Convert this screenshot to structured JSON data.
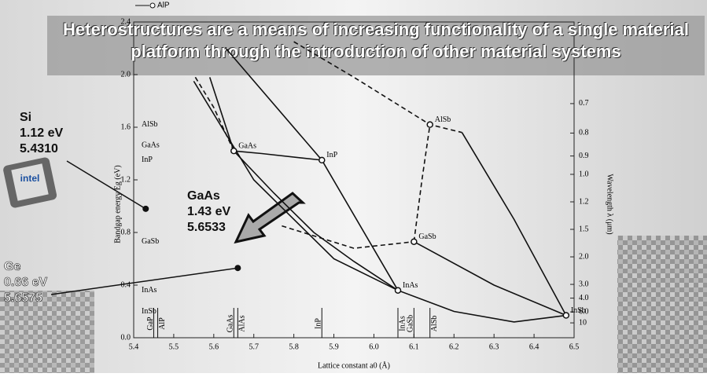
{
  "chart_data": {
    "type": "scatter",
    "title": "Heterostructures are a means of increasing functionality of a single material platform through the introduction of other material systems",
    "x_label": "Lattice constant a0 (Å)",
    "y_label": "Bandgap energy Eg (eV)",
    "y2_label": "Wavelength λ (μm)",
    "xlim": [
      5.4,
      6.5
    ],
    "xticks": [
      5.4,
      5.5,
      5.6,
      5.7,
      5.8,
      5.9,
      {
        "value": 6,
        "label": "6.0"
      },
      6.1,
      6.2,
      6.3,
      6.4,
      6.5
    ],
    "ylim": [
      0,
      2.4
    ],
    "yticks": [
      {
        "value": 0,
        "label": "0.0"
      },
      0.4,
      0.8,
      1.2,
      1.6,
      {
        "value": 2,
        "label": "2.0"
      },
      2.4
    ],
    "y2_scale": "reciprocal",
    "y2lim": [
      100,
      0.52
    ],
    "y2ticks": [
      0.7,
      0.8,
      0.9,
      {
        "value": 1,
        "label": "1.0"
      },
      1.2,
      1.5,
      {
        "value": 2,
        "label": "2.0"
      },
      {
        "value": 3,
        "label": "3.0"
      },
      {
        "value": 4,
        "label": "4.0"
      },
      {
        "value": 6,
        "label": "6.0"
      },
      10
    ],
    "points": {
      "names": [
        "GaAs",
        "InP",
        "AlSb",
        "GaSb",
        "InAs",
        "InSb"
      ],
      "x": [
        5.65,
        5.87,
        6.14,
        6.1,
        6.06,
        6.48
      ],
      "y": [
        1.42,
        1.35,
        1.62,
        0.73,
        0.36,
        0.17
      ],
      "color": "#111111"
    },
    "top_label": "AlP",
    "curves": [
      {
        "x": [
          5.59,
          5.65,
          5.75,
          5.85,
          5.95,
          6.06
        ],
        "y": [
          1.98,
          1.42,
          1.1,
          0.8,
          0.58,
          0.36
        ],
        "style": "solid"
      },
      {
        "x": [
          5.65,
          5.72,
          5.87
        ],
        "y": [
          1.42,
          1.4,
          1.35
        ],
        "style": "solid"
      },
      {
        "x": [
          5.63,
          5.87,
          6.06
        ],
        "y": [
          2.2,
          1.35,
          0.36
        ],
        "style": "solid"
      },
      {
        "x": [
          5.55,
          5.7,
          5.9,
          6.06,
          6.2,
          6.35,
          6.48
        ],
        "y": [
          1.95,
          1.2,
          0.6,
          0.36,
          0.2,
          0.12,
          0.17
        ],
        "style": "solid"
      },
      {
        "x": [
          5.77,
          5.95,
          6.1
        ],
        "y": [
          0.85,
          0.68,
          0.73
        ],
        "style": "dashed"
      },
      {
        "x": [
          6.1,
          6.12,
          6.14
        ],
        "y": [
          0.73,
          1.2,
          1.62
        ],
        "style": "dashed"
      },
      {
        "x": [
          5.8,
          5.95,
          6.14,
          6.22
        ],
        "y": [
          2.25,
          1.98,
          1.62,
          1.56
        ],
        "style": "dashed"
      },
      {
        "x": [
          6.22,
          6.35,
          6.48
        ],
        "y": [
          1.56,
          0.9,
          0.17
        ],
        "style": "solid"
      },
      {
        "x": [
          6.1,
          6.3,
          6.48
        ],
        "y": [
          0.73,
          0.4,
          0.17
        ],
        "style": "solid"
      },
      {
        "x": [
          5.65,
          5.6,
          5.55
        ],
        "y": [
          1.42,
          1.75,
          2.0
        ],
        "style": "dashed"
      }
    ],
    "left_labels": [
      {
        "label": "AlSb",
        "value": 1.62
      },
      {
        "label": "GaAs",
        "value": 1.46
      },
      {
        "label": "InP",
        "value": 1.35
      },
      {
        "label": "GaSb",
        "value": 0.73
      },
      {
        "label": "InAs",
        "value": 0.36
      },
      {
        "label": "InSb",
        "value": 0.2
      }
    ],
    "bottom_labels": [
      {
        "label": "GaP",
        "value": 5.45
      },
      {
        "label": "AlP",
        "value": 5.46
      },
      {
        "label": "GaAs",
        "value": 5.65
      },
      {
        "label": "AlAs",
        "value": 5.66
      },
      {
        "label": "InP",
        "value": 5.87
      },
      {
        "label": "InAs",
        "value": 6.06
      },
      {
        "label": "GaSb",
        "value": 6.1
      },
      {
        "label": "AlSb",
        "value": 6.14
      }
    ],
    "callouts": [
      {
        "name": "Si",
        "energy": "1.12 eV",
        "lattice": "5.4310",
        "x": 5.43,
        "y": 0.98
      },
      {
        "name": "GaAs",
        "energy": "1.43 eV",
        "lattice": "5.6533"
      },
      {
        "name": "Ge",
        "energy": "0.66 eV",
        "lattice": "5.6575",
        "x": 5.66,
        "y": 0.53
      }
    ],
    "chip_label": "intel"
  }
}
